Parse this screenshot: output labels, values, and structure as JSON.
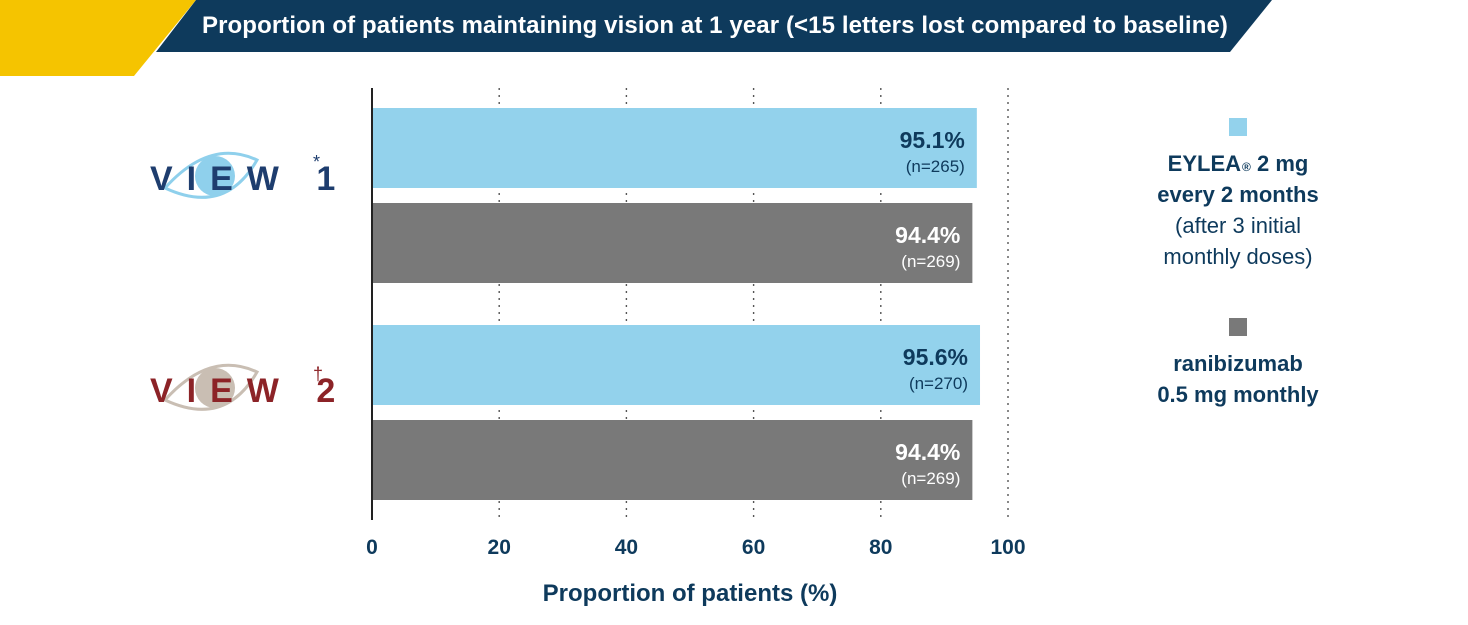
{
  "banner": {
    "title": "Proportion of patients maintaining vision at 1 year (<15 letters lost compared to baseline)",
    "accent_color": "#f5c400",
    "band_color": "#0e3a5c"
  },
  "legend": {
    "items": [
      {
        "lines_bold": [
          "EYLEA",
          "every 2 months"
        ],
        "reg": "®",
        "dose": "2 mg",
        "lines": [
          "(after 3 initial",
          "monthly doses)"
        ],
        "color": "#93d2ec"
      },
      {
        "lines_bold": [
          "ranibizumab",
          "0.5 mg monthly"
        ],
        "lines": [],
        "color": "#797979"
      }
    ]
  },
  "chart_data": {
    "type": "bar",
    "orientation": "horizontal",
    "title": "Proportion of patients maintaining vision at 1 year (<15 letters lost compared to baseline)",
    "xlabel": "Proportion of patients (%)",
    "xlim": [
      0,
      100
    ],
    "xticks": [
      0,
      20,
      40,
      60,
      80,
      100
    ],
    "grid": "vertical-dotted",
    "legend_position": "right",
    "groups": [
      {
        "name": "VIEW 1",
        "mark": "*",
        "name_color": "#1e3d6e",
        "eye_color": "#8fd0ec",
        "bars": [
          {
            "series": "EYLEA 2 mg every 2 months",
            "value": 95.1,
            "label": "95.1%",
            "n": "(n=265)",
            "color": "#93d2ec",
            "text_color": "#0e3a5c"
          },
          {
            "series": "ranibizumab 0.5 mg monthly",
            "value": 94.4,
            "label": "94.4%",
            "n": "(n=269)",
            "color": "#797979",
            "text_color": "#ffffff"
          }
        ]
      },
      {
        "name": "VIEW 2",
        "mark": "†",
        "name_color": "#8c2327",
        "eye_color": "#c9beb3",
        "bars": [
          {
            "series": "EYLEA 2 mg every 2 months",
            "value": 95.6,
            "label": "95.6%",
            "n": "(n=270)",
            "color": "#93d2ec",
            "text_color": "#0e3a5c"
          },
          {
            "series": "ranibizumab 0.5 mg monthly",
            "value": 94.4,
            "label": "94.4%",
            "n": "(n=269)",
            "color": "#797979",
            "text_color": "#ffffff"
          }
        ]
      }
    ]
  }
}
